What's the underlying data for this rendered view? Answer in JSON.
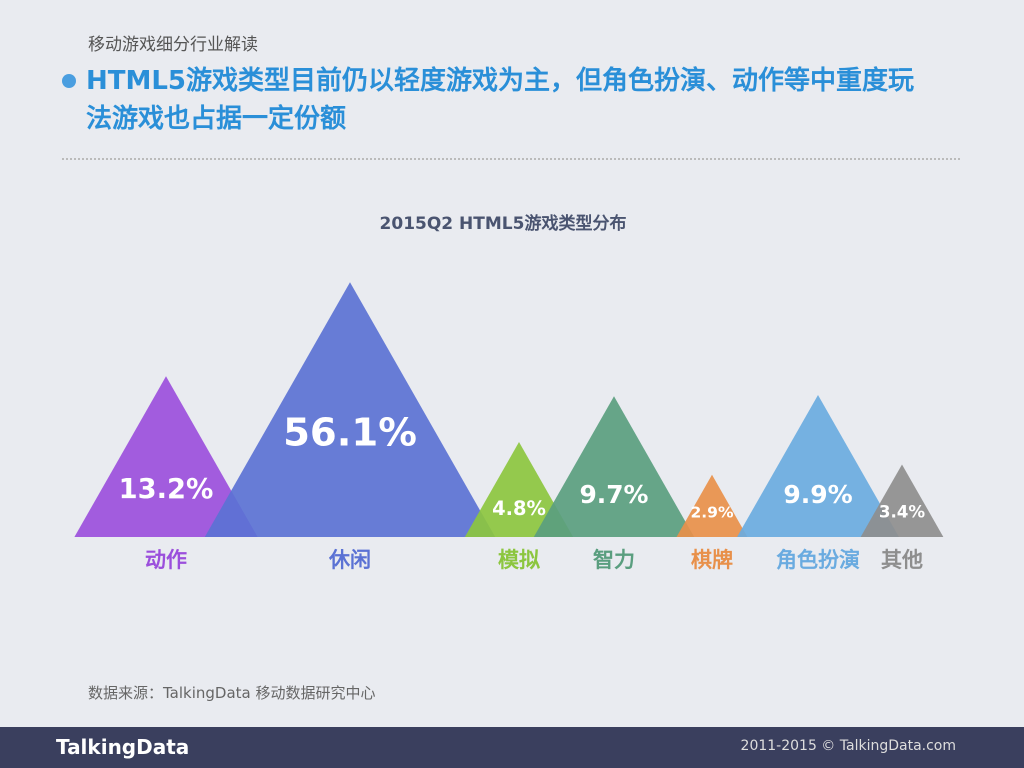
{
  "header": {
    "section": "移动游戏细分行业解读",
    "headline": "HTML5游戏类型目前仍以轻度游戏为主，但角色扮演、动作等中重度玩法游戏也占据一定份额"
  },
  "chart_data": {
    "type": "triangle",
    "title": "2015Q2 HTML5游戏类型分布",
    "categories": [
      "动作",
      "休闲",
      "模拟",
      "智力",
      "棋牌",
      "角色扮演",
      "其他"
    ],
    "values": [
      13.2,
      56.1,
      4.8,
      9.7,
      2.9,
      9.9,
      3.4
    ],
    "value_labels": [
      "13.2%",
      "56.1%",
      "4.8%",
      "9.7%",
      "2.9%",
      "9.9%",
      "3.4%"
    ],
    "colors": [
      "#9b4fdc",
      "#5b72d4",
      "#8cc63f",
      "#5a9e7f",
      "#e8904a",
      "#6aabe0",
      "#8e8e8e"
    ]
  },
  "source": "数据来源：TalkingData 移动数据研究中心",
  "footer": {
    "logo": "TalkingData",
    "copyright": "2011-2015 © TalkingData.com"
  }
}
